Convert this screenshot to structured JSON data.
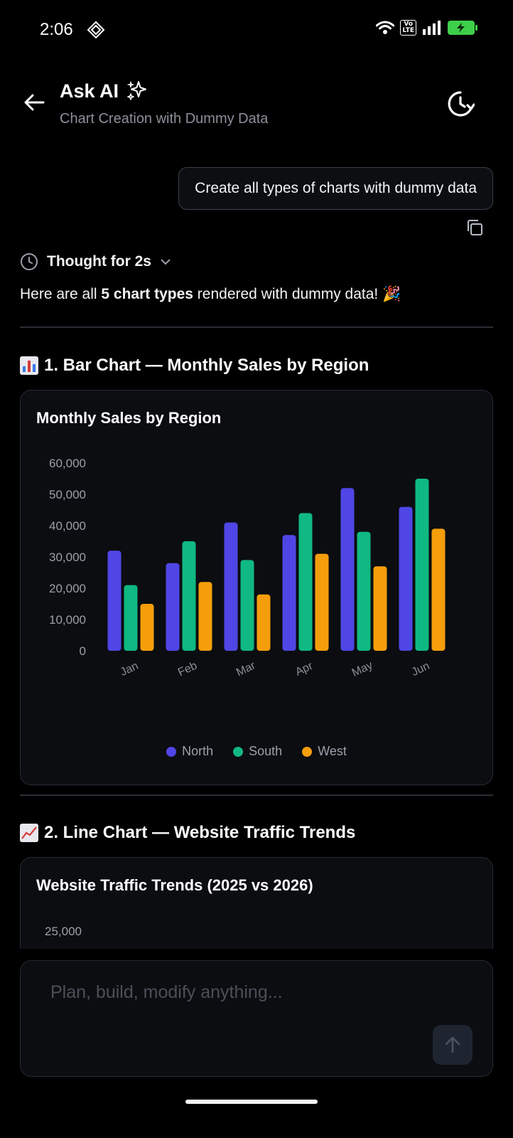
{
  "status": {
    "time": "2:06",
    "volte_line1": "Vo",
    "volte_line2": "LTE"
  },
  "header": {
    "title": "Ask AI",
    "subtitle": "Chart Creation with Dummy Data"
  },
  "conversation": {
    "user_message": "Create all types of charts with dummy data",
    "thought_label": "Thought for 2s",
    "intro_prefix": "Here are all ",
    "intro_bold": "5 chart types",
    "intro_suffix": " rendered with dummy data! 🎉"
  },
  "sections": [
    {
      "heading": "1. Bar Chart — Monthly Sales by Region"
    },
    {
      "heading": "2. Line Chart — Website Traffic Trends"
    }
  ],
  "chart_data": [
    {
      "type": "bar",
      "title": "Monthly Sales by Region",
      "categories": [
        "Jan",
        "Feb",
        "Mar",
        "Apr",
        "May",
        "Jun"
      ],
      "series": [
        {
          "name": "North",
          "color": "#5046e5",
          "values": [
            32000,
            28000,
            41000,
            37000,
            52000,
            46000
          ]
        },
        {
          "name": "South",
          "color": "#10b981",
          "values": [
            21000,
            35000,
            29000,
            44000,
            38000,
            55000
          ]
        },
        {
          "name": "West",
          "color": "#f59e0b",
          "values": [
            15000,
            22000,
            18000,
            31000,
            27000,
            39000
          ]
        }
      ],
      "yticks": [
        "0",
        "10,000",
        "20,000",
        "30,000",
        "40,000",
        "50,000",
        "60,000"
      ],
      "ylim": [
        0,
        60000
      ],
      "legend": "bottom-center"
    },
    {
      "type": "line",
      "title": "Website Traffic Trends (2025 vs 2026)",
      "yticks_visible": [
        "25,000"
      ]
    }
  ],
  "composer": {
    "placeholder": "Plan, build, modify anything..."
  }
}
